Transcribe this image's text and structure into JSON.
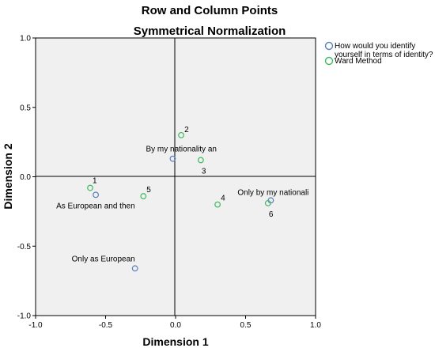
{
  "chart_data": {
    "type": "scatter",
    "title": "Row and Column Points",
    "subtitle": "Symmetrical Normalization",
    "xlabel": "Dimension 1",
    "ylabel": "Dimension 2",
    "xlim": [
      -1.0,
      1.0
    ],
    "ylim": [
      -1.0,
      1.0
    ],
    "xticks": [
      "-1.0",
      "-0.5",
      "0.0",
      "0.5",
      "1.0"
    ],
    "yticks": [
      "1.0",
      "0.5",
      "0.0",
      "-0.5",
      "-1.0"
    ],
    "grid": false,
    "legend_position": "right",
    "series": [
      {
        "name": "How would you identify yourself in terms of identity?",
        "color": "#5b7fbf",
        "points": [
          {
            "x": -0.02,
            "y": 0.13,
            "label": "By my nationality an"
          },
          {
            "x": -0.57,
            "y": -0.13,
            "label": "As European and then"
          },
          {
            "x": -0.29,
            "y": -0.66,
            "label": "Only as European"
          },
          {
            "x": 0.68,
            "y": -0.17,
            "label": "Only by my nationali"
          }
        ]
      },
      {
        "name": "Ward Method",
        "color": "#3fba5f",
        "points": [
          {
            "x": -0.61,
            "y": -0.08,
            "label": "1"
          },
          {
            "x": 0.04,
            "y": 0.3,
            "label": "2"
          },
          {
            "x": 0.18,
            "y": 0.12,
            "label": "3"
          },
          {
            "x": 0.3,
            "y": -0.2,
            "label": "4"
          },
          {
            "x": -0.23,
            "y": -0.14,
            "label": "5"
          },
          {
            "x": 0.66,
            "y": -0.19,
            "label": "6"
          }
        ]
      }
    ]
  }
}
